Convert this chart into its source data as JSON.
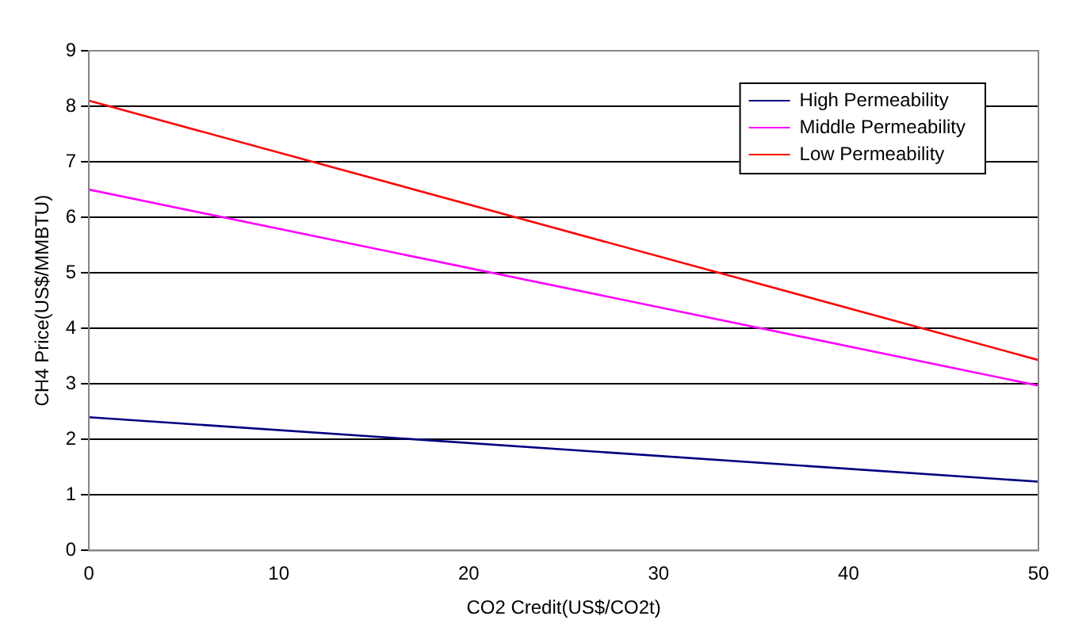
{
  "chart_data": {
    "type": "line",
    "xlabel": "CO2 Credit(US$/CO2t)",
    "ylabel": "CH4 Price(US$/MMBTU)",
    "x": [
      0,
      50
    ],
    "xlim": [
      0,
      50
    ],
    "xticks": [
      0,
      10,
      20,
      30,
      40,
      50
    ],
    "ylim": [
      0,
      9
    ],
    "yticks": [
      0,
      1,
      2,
      3,
      4,
      5,
      6,
      7,
      8,
      9
    ],
    "grid": "y",
    "legend": "top right",
    "marker": "none",
    "line_style": "solid",
    "series": [
      {
        "name": "High Permeability",
        "color": "#000080",
        "values": [
          2.4,
          1.24
        ]
      },
      {
        "name": "Middle Permeability",
        "color": "#ff00ff",
        "values": [
          6.5,
          2.97
        ]
      },
      {
        "name": "Low Permeability",
        "color": "#ff0000",
        "values": [
          8.1,
          3.43
        ]
      }
    ]
  }
}
